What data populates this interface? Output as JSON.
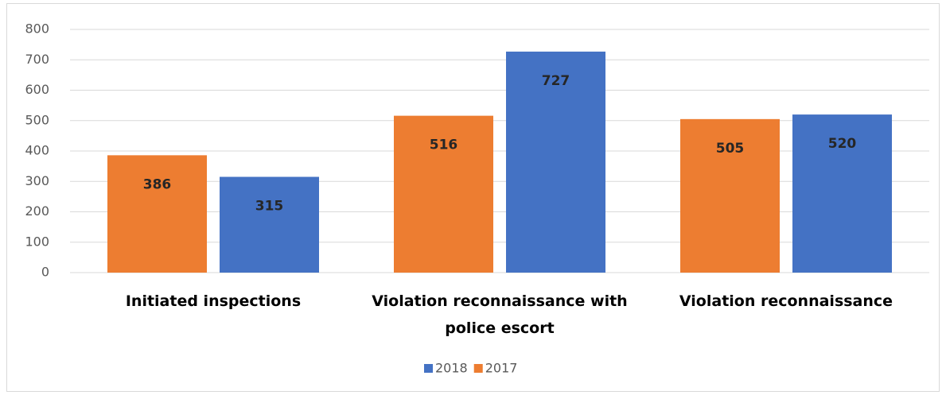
{
  "chart_data": {
    "type": "bar",
    "categories": [
      "Initiated inspections",
      "Violation reconnaissance with police escort",
      "Violation reconnaissance"
    ],
    "series": [
      {
        "name": "2018",
        "color": "#4472c4",
        "values": [
          315,
          727,
          520
        ]
      },
      {
        "name": "2017",
        "color": "#ed7d31",
        "values": [
          386,
          516,
          505
        ]
      }
    ],
    "ylim": [
      0,
      800
    ],
    "yticks": [
      0,
      100,
      200,
      300,
      400,
      500,
      600,
      700,
      800
    ],
    "grid": true,
    "legend": "bottom"
  }
}
